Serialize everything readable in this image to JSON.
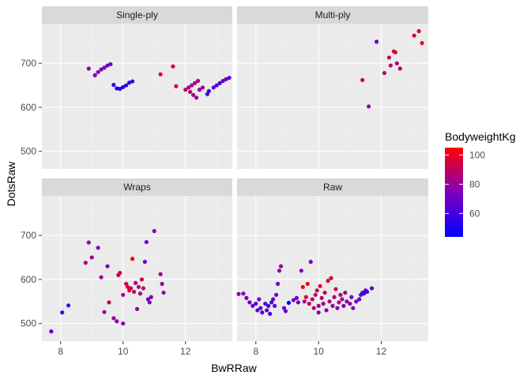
{
  "chart_data": {
    "type": "scatter",
    "xlabel": "BwRRaw",
    "ylabel": "DotsRaw",
    "xlim": [
      7.4,
      13.5
    ],
    "ylim": [
      460,
      790
    ],
    "x_ticks": [
      8,
      10,
      12
    ],
    "y_ticks": [
      500,
      600,
      700
    ],
    "color_legend": {
      "title": "BodyweightKg",
      "min": 44,
      "max": 105,
      "ticks": [
        60,
        80,
        100
      ],
      "low_color": "#0000ff",
      "mid_color": "#7f00bf",
      "high_color": "#ff0000"
    },
    "panels": [
      {
        "label": "Single-ply",
        "points": [
          {
            "x": 8.9,
            "y": 688,
            "bw": 78
          },
          {
            "x": 9.1,
            "y": 673,
            "bw": 75
          },
          {
            "x": 9.2,
            "y": 680,
            "bw": 77
          },
          {
            "x": 9.3,
            "y": 686,
            "bw": 76
          },
          {
            "x": 9.4,
            "y": 690,
            "bw": 74
          },
          {
            "x": 9.5,
            "y": 695,
            "bw": 73
          },
          {
            "x": 9.6,
            "y": 698,
            "bw": 72
          },
          {
            "x": 9.7,
            "y": 651,
            "bw": 56
          },
          {
            "x": 9.8,
            "y": 643,
            "bw": 50
          },
          {
            "x": 9.9,
            "y": 642,
            "bw": 49
          },
          {
            "x": 10.0,
            "y": 646,
            "bw": 52
          },
          {
            "x": 10.1,
            "y": 650,
            "bw": 54
          },
          {
            "x": 10.2,
            "y": 656,
            "bw": 55
          },
          {
            "x": 10.3,
            "y": 659,
            "bw": 57
          },
          {
            "x": 11.2,
            "y": 675,
            "bw": 98
          },
          {
            "x": 11.6,
            "y": 693,
            "bw": 95
          },
          {
            "x": 11.7,
            "y": 648,
            "bw": 92
          },
          {
            "x": 12.0,
            "y": 640,
            "bw": 88
          },
          {
            "x": 12.1,
            "y": 645,
            "bw": 86
          },
          {
            "x": 12.2,
            "y": 650,
            "bw": 85
          },
          {
            "x": 12.3,
            "y": 655,
            "bw": 84
          },
          {
            "x": 12.4,
            "y": 660,
            "bw": 83
          },
          {
            "x": 12.15,
            "y": 635,
            "bw": 87
          },
          {
            "x": 12.25,
            "y": 628,
            "bw": 82
          },
          {
            "x": 12.35,
            "y": 622,
            "bw": 80
          },
          {
            "x": 12.45,
            "y": 640,
            "bw": 79
          },
          {
            "x": 12.55,
            "y": 645,
            "bw": 81
          },
          {
            "x": 12.7,
            "y": 630,
            "bw": 62
          },
          {
            "x": 12.75,
            "y": 637,
            "bw": 60
          },
          {
            "x": 12.9,
            "y": 645,
            "bw": 65
          },
          {
            "x": 13.0,
            "y": 650,
            "bw": 64
          },
          {
            "x": 13.1,
            "y": 655,
            "bw": 63
          },
          {
            "x": 13.2,
            "y": 660,
            "bw": 66
          },
          {
            "x": 13.3,
            "y": 664,
            "bw": 68
          },
          {
            "x": 13.4,
            "y": 667,
            "bw": 67
          }
        ]
      },
      {
        "label": "Multi-ply",
        "points": [
          {
            "x": 11.4,
            "y": 662,
            "bw": 95
          },
          {
            "x": 11.6,
            "y": 602,
            "bw": 78
          },
          {
            "x": 11.85,
            "y": 749,
            "bw": 70
          },
          {
            "x": 12.1,
            "y": 678,
            "bw": 90
          },
          {
            "x": 12.25,
            "y": 713,
            "bw": 92
          },
          {
            "x": 12.3,
            "y": 695,
            "bw": 88
          },
          {
            "x": 12.4,
            "y": 727,
            "bw": 96
          },
          {
            "x": 12.45,
            "y": 725,
            "bw": 98
          },
          {
            "x": 12.5,
            "y": 700,
            "bw": 85
          },
          {
            "x": 12.6,
            "y": 688,
            "bw": 90
          },
          {
            "x": 13.05,
            "y": 763,
            "bw": 95
          },
          {
            "x": 13.2,
            "y": 773,
            "bw": 97
          },
          {
            "x": 13.3,
            "y": 746,
            "bw": 99
          }
        ]
      },
      {
        "label": "Wraps",
        "points": [
          {
            "x": 7.7,
            "y": 482,
            "bw": 68
          },
          {
            "x": 8.05,
            "y": 525,
            "bw": 60
          },
          {
            "x": 8.25,
            "y": 541,
            "bw": 62
          },
          {
            "x": 8.8,
            "y": 638,
            "bw": 84
          },
          {
            "x": 8.9,
            "y": 684,
            "bw": 78
          },
          {
            "x": 9.0,
            "y": 650,
            "bw": 82
          },
          {
            "x": 9.2,
            "y": 672,
            "bw": 74
          },
          {
            "x": 9.3,
            "y": 605,
            "bw": 80
          },
          {
            "x": 9.4,
            "y": 526,
            "bw": 83
          },
          {
            "x": 9.5,
            "y": 630,
            "bw": 72
          },
          {
            "x": 9.55,
            "y": 548,
            "bw": 88
          },
          {
            "x": 9.7,
            "y": 512,
            "bw": 82
          },
          {
            "x": 9.8,
            "y": 505,
            "bw": 78
          },
          {
            "x": 9.85,
            "y": 610,
            "bw": 90
          },
          {
            "x": 9.9,
            "y": 615,
            "bw": 94
          },
          {
            "x": 10.0,
            "y": 565,
            "bw": 85
          },
          {
            "x": 10.0,
            "y": 500,
            "bw": 77
          },
          {
            "x": 10.1,
            "y": 590,
            "bw": 97
          },
          {
            "x": 10.15,
            "y": 583,
            "bw": 95
          },
          {
            "x": 10.2,
            "y": 575,
            "bw": 98
          },
          {
            "x": 10.25,
            "y": 580,
            "bw": 92
          },
          {
            "x": 10.3,
            "y": 647,
            "bw": 102
          },
          {
            "x": 10.35,
            "y": 572,
            "bw": 89
          },
          {
            "x": 10.4,
            "y": 592,
            "bw": 86
          },
          {
            "x": 10.45,
            "y": 533,
            "bw": 80
          },
          {
            "x": 10.5,
            "y": 583,
            "bw": 90
          },
          {
            "x": 10.55,
            "y": 568,
            "bw": 84
          },
          {
            "x": 10.6,
            "y": 600,
            "bw": 93
          },
          {
            "x": 10.65,
            "y": 580,
            "bw": 88
          },
          {
            "x": 10.7,
            "y": 640,
            "bw": 70
          },
          {
            "x": 10.75,
            "y": 685,
            "bw": 68
          },
          {
            "x": 10.8,
            "y": 555,
            "bw": 73
          },
          {
            "x": 10.85,
            "y": 548,
            "bw": 75
          },
          {
            "x": 10.9,
            "y": 560,
            "bw": 72
          },
          {
            "x": 11.0,
            "y": 710,
            "bw": 76
          },
          {
            "x": 11.2,
            "y": 612,
            "bw": 80
          },
          {
            "x": 11.25,
            "y": 590,
            "bw": 82
          },
          {
            "x": 11.3,
            "y": 570,
            "bw": 78
          }
        ]
      },
      {
        "label": "Raw",
        "points": [
          {
            "x": 7.45,
            "y": 567,
            "bw": 80
          },
          {
            "x": 7.6,
            "y": 568,
            "bw": 78
          },
          {
            "x": 7.7,
            "y": 558,
            "bw": 72
          },
          {
            "x": 7.8,
            "y": 548,
            "bw": 69
          },
          {
            "x": 7.9,
            "y": 540,
            "bw": 68
          },
          {
            "x": 8.0,
            "y": 545,
            "bw": 66
          },
          {
            "x": 8.05,
            "y": 530,
            "bw": 65
          },
          {
            "x": 8.1,
            "y": 555,
            "bw": 70
          },
          {
            "x": 8.15,
            "y": 535,
            "bw": 64
          },
          {
            "x": 8.2,
            "y": 525,
            "bw": 63
          },
          {
            "x": 8.3,
            "y": 545,
            "bw": 66
          },
          {
            "x": 8.35,
            "y": 530,
            "bw": 62
          },
          {
            "x": 8.4,
            "y": 540,
            "bw": 60
          },
          {
            "x": 8.45,
            "y": 522,
            "bw": 58
          },
          {
            "x": 8.5,
            "y": 548,
            "bw": 61
          },
          {
            "x": 8.55,
            "y": 555,
            "bw": 68
          },
          {
            "x": 8.6,
            "y": 540,
            "bw": 65
          },
          {
            "x": 8.65,
            "y": 565,
            "bw": 72
          },
          {
            "x": 8.7,
            "y": 590,
            "bw": 74
          },
          {
            "x": 8.75,
            "y": 620,
            "bw": 78
          },
          {
            "x": 8.8,
            "y": 630,
            "bw": 80
          },
          {
            "x": 8.9,
            "y": 535,
            "bw": 67
          },
          {
            "x": 8.95,
            "y": 528,
            "bw": 70
          },
          {
            "x": 9.05,
            "y": 547,
            "bw": 46
          },
          {
            "x": 9.2,
            "y": 553,
            "bw": 72
          },
          {
            "x": 9.3,
            "y": 558,
            "bw": 70
          },
          {
            "x": 9.35,
            "y": 548,
            "bw": 68
          },
          {
            "x": 9.45,
            "y": 620,
            "bw": 74
          },
          {
            "x": 9.5,
            "y": 583,
            "bw": 102
          },
          {
            "x": 9.55,
            "y": 550,
            "bw": 85
          },
          {
            "x": 9.6,
            "y": 560,
            "bw": 96
          },
          {
            "x": 9.65,
            "y": 590,
            "bw": 100
          },
          {
            "x": 9.7,
            "y": 545,
            "bw": 92
          },
          {
            "x": 9.75,
            "y": 640,
            "bw": 72
          },
          {
            "x": 9.8,
            "y": 555,
            "bw": 88
          },
          {
            "x": 9.85,
            "y": 535,
            "bw": 84
          },
          {
            "x": 9.9,
            "y": 565,
            "bw": 90
          },
          {
            "x": 9.95,
            "y": 575,
            "bw": 92
          },
          {
            "x": 10.0,
            "y": 540,
            "bw": 86
          },
          {
            "x": 10.0,
            "y": 525,
            "bw": 80
          },
          {
            "x": 10.05,
            "y": 585,
            "bw": 98
          },
          {
            "x": 10.1,
            "y": 558,
            "bw": 88
          },
          {
            "x": 10.15,
            "y": 545,
            "bw": 82
          },
          {
            "x": 10.2,
            "y": 570,
            "bw": 90
          },
          {
            "x": 10.25,
            "y": 530,
            "bw": 78
          },
          {
            "x": 10.3,
            "y": 597,
            "bw": 96
          },
          {
            "x": 10.35,
            "y": 550,
            "bw": 86
          },
          {
            "x": 10.4,
            "y": 603,
            "bw": 98
          },
          {
            "x": 10.45,
            "y": 540,
            "bw": 80
          },
          {
            "x": 10.5,
            "y": 560,
            "bw": 88
          },
          {
            "x": 10.55,
            "y": 578,
            "bw": 92
          },
          {
            "x": 10.6,
            "y": 535,
            "bw": 78
          },
          {
            "x": 10.65,
            "y": 548,
            "bw": 84
          },
          {
            "x": 10.7,
            "y": 565,
            "bw": 86
          },
          {
            "x": 10.75,
            "y": 555,
            "bw": 80
          },
          {
            "x": 10.8,
            "y": 540,
            "bw": 76
          },
          {
            "x": 10.85,
            "y": 570,
            "bw": 82
          },
          {
            "x": 10.9,
            "y": 550,
            "bw": 79
          },
          {
            "x": 11.0,
            "y": 545,
            "bw": 76
          },
          {
            "x": 11.05,
            "y": 560,
            "bw": 74
          },
          {
            "x": 11.1,
            "y": 535,
            "bw": 72
          },
          {
            "x": 11.2,
            "y": 550,
            "bw": 70
          },
          {
            "x": 11.3,
            "y": 555,
            "bw": 68
          },
          {
            "x": 11.35,
            "y": 565,
            "bw": 66
          },
          {
            "x": 11.4,
            "y": 570,
            "bw": 64
          },
          {
            "x": 11.45,
            "y": 568,
            "bw": 62
          },
          {
            "x": 11.5,
            "y": 575,
            "bw": 60
          },
          {
            "x": 11.55,
            "y": 572,
            "bw": 61
          },
          {
            "x": 11.7,
            "y": 580,
            "bw": 63
          }
        ]
      }
    ]
  }
}
